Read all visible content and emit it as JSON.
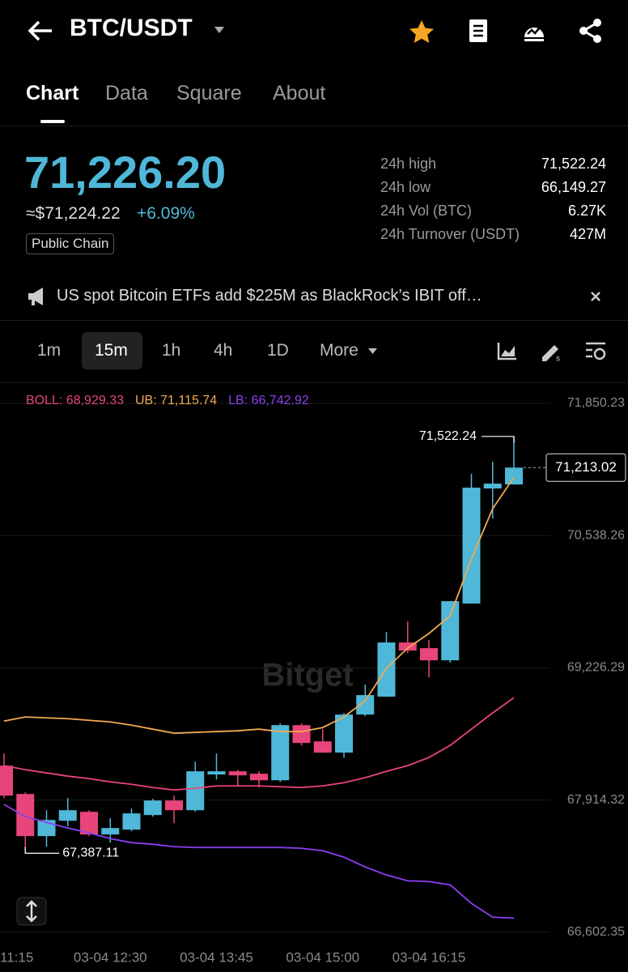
{
  "header": {
    "pair": "BTC/USDT"
  },
  "tabs": [
    "Chart",
    "Data",
    "Square",
    "About"
  ],
  "price": {
    "last": "71,226.20",
    "usd": "≈$71,224.22",
    "change": "+6.09%",
    "tag": "Public Chain"
  },
  "stats": [
    [
      "24h high",
      "71,522.24"
    ],
    [
      "24h low",
      "66,149.27"
    ],
    [
      "24h Vol (BTC)",
      "6.27K"
    ],
    [
      "24h Turnover (USDT)",
      "427M"
    ]
  ],
  "news": "US spot Bitcoin ETFs add $225M as BlackRock’s IBIT off…",
  "intervals": [
    "1m",
    "15m",
    "1h",
    "4h",
    "1D",
    "More"
  ],
  "watermark": "Bitget",
  "chart_data": {
    "type": "candlestick",
    "categories": [
      "11:15",
      null,
      null,
      null,
      null,
      "03-04 12:30",
      null,
      null,
      null,
      null,
      "03-04 13:45",
      null,
      null,
      null,
      null,
      "03-04 15:00",
      null,
      null,
      null,
      null,
      "03-04 16:15",
      null,
      null,
      null,
      null
    ],
    "open": [
      68256,
      67975,
      67557,
      67709,
      67798,
      67573,
      67621,
      67766,
      67910,
      67814,
      68168,
      68200,
      68176,
      68111,
      68658,
      68497,
      68385,
      68763,
      68940,
      69478,
      69422,
      69301,
      69864,
      71006,
      71046
    ],
    "high": [
      68377,
      67991,
      67814,
      67935,
      67814,
      67734,
      67830,
      67926,
      67959,
      68296,
      68377,
      68216,
      68200,
      68674,
      68674,
      68618,
      68779,
      69060,
      69583,
      69687,
      69502,
      69888,
      71151,
      71271,
      71522.24
    ],
    "low": [
      67935,
      67387.11,
      67452,
      67653,
      67557,
      67492,
      67605,
      67750,
      67685,
      67798,
      68119,
      68055,
      68039,
      68095,
      68457,
      68385,
      68337,
      68747,
      68940,
      69374,
      69132,
      69277,
      69864,
      70708,
      71046
    ],
    "close": [
      67959,
      67557,
      67717,
      67814,
      67573,
      67637,
      67782,
      67910,
      67814,
      68200,
      68200,
      68160,
      68111,
      68658,
      68481,
      68385,
      68763,
      68956,
      69478,
      69398,
      69301,
      69888,
      71014,
      71054,
      71213.02
    ],
    "up_color": "#4fb8d8",
    "down_color": "#e8457a",
    "series": [
      {
        "name": "BOLL: 68,929.33",
        "color": "#e8457a",
        "values": [
          68256,
          68216,
          68184,
          68152,
          68127,
          68095,
          68071,
          68039,
          68015,
          68031,
          68055,
          68055,
          68055,
          68047,
          68039,
          68055,
          68087,
          68136,
          68200,
          68256,
          68337,
          68457,
          68618,
          68779,
          68929.33
        ]
      },
      {
        "name": "UB: 71,115.74",
        "color": "#f2a950",
        "values": [
          68698,
          68739,
          68730,
          68722,
          68706,
          68690,
          68658,
          68618,
          68578,
          68586,
          68594,
          68602,
          68618,
          68594,
          68594,
          68634,
          68739,
          68899,
          69221,
          69422,
          69567,
          69744,
          70306,
          70805,
          71115.74
        ]
      },
      {
        "name": "LB: 66,742.92",
        "color": "#8c3ff2",
        "values": [
          67870,
          67750,
          67693,
          67637,
          67589,
          67533,
          67492,
          67476,
          67452,
          67444,
          67444,
          67444,
          67444,
          67444,
          67436,
          67412,
          67348,
          67251,
          67171,
          67114,
          67106,
          67074,
          66889,
          66753,
          66742.92
        ]
      }
    ],
    "ylim": [
      66506,
      72035
    ],
    "yticks": [
      {
        "value": 71850.23,
        "label": "71,850.23"
      },
      {
        "value": 70538.26,
        "label": "70,538.26"
      },
      {
        "value": 69226.29,
        "label": "69,226.29"
      },
      {
        "value": 67914.32,
        "label": "67,914.32"
      },
      {
        "value": 66602.35,
        "label": "66,602.35"
      }
    ],
    "grid": true,
    "markers": [
      {
        "value": 71522.24,
        "label": "71,522.24"
      },
      {
        "value": 67387.11,
        "label": "67,387.11"
      }
    ],
    "last": {
      "value": 71213.02,
      "label": "71,213.02"
    }
  }
}
